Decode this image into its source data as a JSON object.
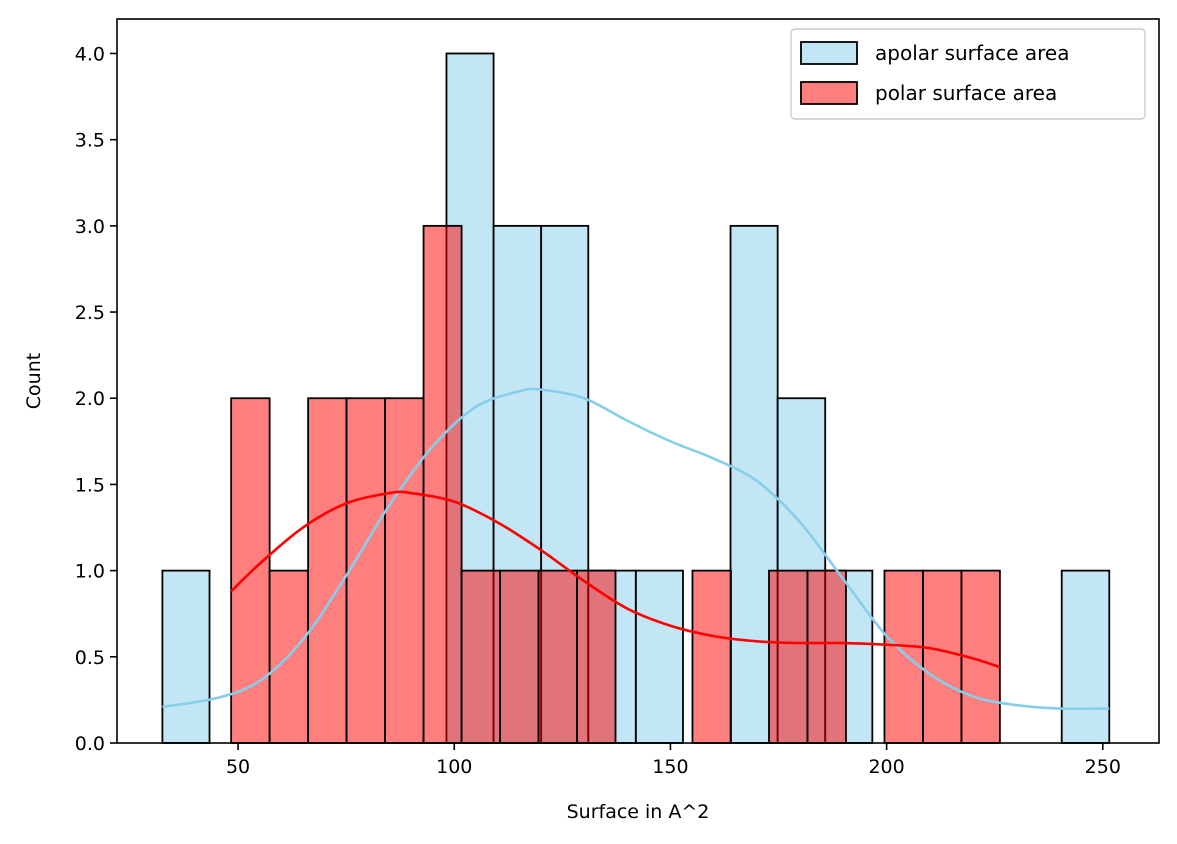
{
  "chart_data": {
    "type": "bar",
    "subtype": "overlaid histogram with KDE curves",
    "xlabel": "Surface in A^2",
    "ylabel": "Count",
    "xlim": [
      22,
      263
    ],
    "ylim": [
      0,
      4.2
    ],
    "xticks": [
      50,
      100,
      150,
      200,
      250
    ],
    "yticks": [
      0.0,
      0.5,
      1.0,
      1.5,
      2.0,
      2.5,
      3.0,
      3.5,
      4.0
    ],
    "ytick_labels": [
      "0.0",
      "0.5",
      "1.0",
      "1.5",
      "2.0",
      "2.5",
      "3.0",
      "3.5",
      "4.0"
    ],
    "grid": false,
    "legend_position": "top-right",
    "series": [
      {
        "name": "apolar surface area",
        "fill": "#87ceeb",
        "fill_opacity": 0.5,
        "edge": "#000000",
        "kde_color": "#87ceeb",
        "bin_edges": [
          32.5,
          43.4,
          54.4,
          65.3,
          76.3,
          87.2,
          98.2,
          109.1,
          120.1,
          131.0,
          142.0,
          152.9,
          163.9,
          174.8,
          185.8,
          196.7,
          207.7,
          218.6,
          229.6,
          240.5,
          251.5
        ],
        "counts": [
          1,
          0,
          0,
          0,
          0,
          0,
          4,
          3,
          3,
          1,
          1,
          0,
          3,
          2,
          1,
          0,
          0,
          0,
          0,
          1
        ],
        "kde": [
          [
            32.5,
            0.21
          ],
          [
            45,
            0.26
          ],
          [
            55,
            0.36
          ],
          [
            65,
            0.6
          ],
          [
            75,
            0.97
          ],
          [
            85,
            1.38
          ],
          [
            95,
            1.72
          ],
          [
            105,
            1.95
          ],
          [
            115,
            2.04
          ],
          [
            120,
            2.05
          ],
          [
            130,
            2.0
          ],
          [
            140,
            1.87
          ],
          [
            150,
            1.75
          ],
          [
            160,
            1.65
          ],
          [
            170,
            1.52
          ],
          [
            180,
            1.28
          ],
          [
            190,
            0.95
          ],
          [
            200,
            0.62
          ],
          [
            210,
            0.4
          ],
          [
            220,
            0.27
          ],
          [
            230,
            0.22
          ],
          [
            240,
            0.2
          ],
          [
            251.5,
            0.2
          ]
        ]
      },
      {
        "name": "polar surface area",
        "fill": "#ff0000",
        "fill_opacity": 0.5,
        "edge": "#000000",
        "kde_color": "#ff0000",
        "bin_edges": [
          48.4,
          57.3,
          66.2,
          75.1,
          84.0,
          92.9,
          101.7,
          110.6,
          119.5,
          128.4,
          137.3,
          146.2,
          155.1,
          164.0,
          172.8,
          181.7,
          190.6,
          199.5,
          208.4,
          217.3,
          226.2
        ],
        "counts": [
          2,
          1,
          2,
          2,
          2,
          3,
          1,
          1,
          1,
          1,
          0,
          0,
          1,
          0,
          1,
          1,
          0,
          1,
          1,
          1
        ],
        "kde": [
          [
            48.4,
            0.88
          ],
          [
            55,
            1.04
          ],
          [
            65,
            1.25
          ],
          [
            75,
            1.39
          ],
          [
            85,
            1.45
          ],
          [
            90,
            1.45
          ],
          [
            100,
            1.4
          ],
          [
            110,
            1.28
          ],
          [
            120,
            1.12
          ],
          [
            130,
            0.94
          ],
          [
            140,
            0.78
          ],
          [
            150,
            0.68
          ],
          [
            160,
            0.62
          ],
          [
            170,
            0.59
          ],
          [
            180,
            0.58
          ],
          [
            190,
            0.58
          ],
          [
            200,
            0.57
          ],
          [
            210,
            0.55
          ],
          [
            220,
            0.49
          ],
          [
            226.2,
            0.44
          ]
        ]
      }
    ]
  }
}
